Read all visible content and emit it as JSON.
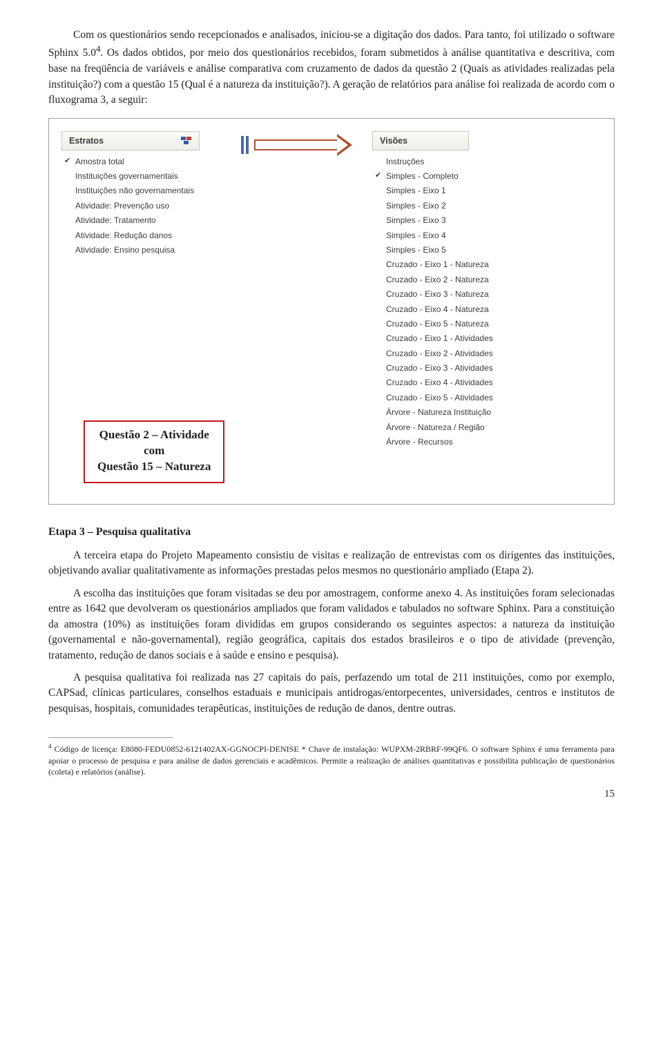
{
  "body": {
    "p1_a": "Com os questionários sendo recepcionados e analisados, iniciou-se a digitação dos dados. Para tanto, foi utilizado o software Sphinx 5.0",
    "p1_sup": "4",
    "p1_b": ". Os dados obtidos, por meio dos questionários recebidos, foram submetidos à análise quantitativa e descritiva, com base na freqüência de variáveis e análise comparativa com cruzamento de dados da questão 2 (Quais as atividades realizadas pela instituição?) com a questão 15 (Qual é a natureza da instituição?). A geração de relatórios para análise foi realizada de acordo com o fluxograma 3, a seguir:"
  },
  "diagram": {
    "estratos": {
      "header": "Estratos",
      "items": [
        {
          "label": "Amostra total",
          "checked": true
        },
        {
          "label": "Instituições governamentais",
          "checked": false
        },
        {
          "label": "Instituições não governamentais",
          "checked": false
        },
        {
          "label": "Atividade: Prevenção uso",
          "checked": false
        },
        {
          "label": "Atividade: Tratamento",
          "checked": false
        },
        {
          "label": "Atividade: Redução danos",
          "checked": false
        },
        {
          "label": "Atividade: Ensino pesquisa",
          "checked": false
        }
      ]
    },
    "visoes": {
      "header": "Visões",
      "items": [
        {
          "label": "Instruções",
          "checked": false
        },
        {
          "label": "Simples - Completo",
          "checked": true
        },
        {
          "label": "Simples - Eixo 1",
          "checked": false
        },
        {
          "label": "Simples - Eixo 2",
          "checked": false
        },
        {
          "label": "Simples - Eixo 3",
          "checked": false
        },
        {
          "label": "Simples - Eixo 4",
          "checked": false
        },
        {
          "label": "Simples - Eixo 5",
          "checked": false
        },
        {
          "label": "Cruzado - Eixo 1 - Natureza",
          "checked": false
        },
        {
          "label": "Cruzado - Eixo 2 - Natureza",
          "checked": false
        },
        {
          "label": "Cruzado - Eixo 3 - Natureza",
          "checked": false
        },
        {
          "label": "Cruzado - Eixo 4 - Natureza",
          "checked": false
        },
        {
          "label": "Cruzado - Eixo 5 - Natureza",
          "checked": false
        },
        {
          "label": "Cruzado - Eixo 1 - Atividades",
          "checked": false
        },
        {
          "label": "Cruzado - Eixo 2 - Atividades",
          "checked": false
        },
        {
          "label": "Cruzado - Eixo 3 - Atividades",
          "checked": false
        },
        {
          "label": "Cruzado - Eixo 4 - Atividades",
          "checked": false
        },
        {
          "label": "Cruzado - Eixo 5 - Atividades",
          "checked": false
        },
        {
          "label": "Árvore - Natureza Instituição",
          "checked": false
        },
        {
          "label": "Árvore - Natureza / Região",
          "checked": false
        },
        {
          "label": "Árvore - Recursos",
          "checked": false
        }
      ]
    },
    "callout": {
      "line1": "Questão 2 – Atividade",
      "line2": "com",
      "line3": "Questão 15 – Natureza"
    }
  },
  "section": {
    "title": "Etapa 3 – Pesquisa qualitativa",
    "p1": "A terceira etapa do Projeto Mapeamento consistiu de visitas e realização de entrevistas com os dirigentes das instituições, objetivando avaliar qualitativamente as informações prestadas pelos mesmos no questionário ampliado (Etapa 2).",
    "p2": "A escolha das instituições que foram visitadas se deu por amostragem, conforme anexo 4. As instituições foram selecionadas entre as 1642 que devolveram os questionários ampliados que foram validados e tabulados no software Sphinx. Para a constituição da amostra (10%) as instituições foram divididas em grupos considerando os seguintes aspectos: a natureza da instituição (governamental e não-governamental), região geográfica, capitais dos estados brasileiros e o tipo de atividade (prevenção, tratamento, redução de danos sociais e à saúde e ensino e pesquisa).",
    "p3": "A pesquisa qualitativa foi realizada nas 27 capitais do país, perfazendo um total de 211 instituições, como por exemplo, CAPSad, clínicas particulares, conselhos estaduais e municipais antidrogas/entorpecentes, universidades, centros e institutos de pesquisas, hospitais, comunidades terapêuticas, instituições de redução de danos, dentre outras."
  },
  "footnote": {
    "num": "4",
    "text": "Código de licença: E8080-FEDU0852-6121402AX-GGNOCPI-DENISE * Chave de instalação: WUPXM-2RBRF-99QF6. O software Sphinx é uma ferramenta para apoiar o processo de pesquisa e para análise de dados gerenciais e acadêmicos. Permite a realização de análises quantitativas e possibilita publicação de questionários (coleta) e relatórios (análise)."
  },
  "page_number": "15"
}
